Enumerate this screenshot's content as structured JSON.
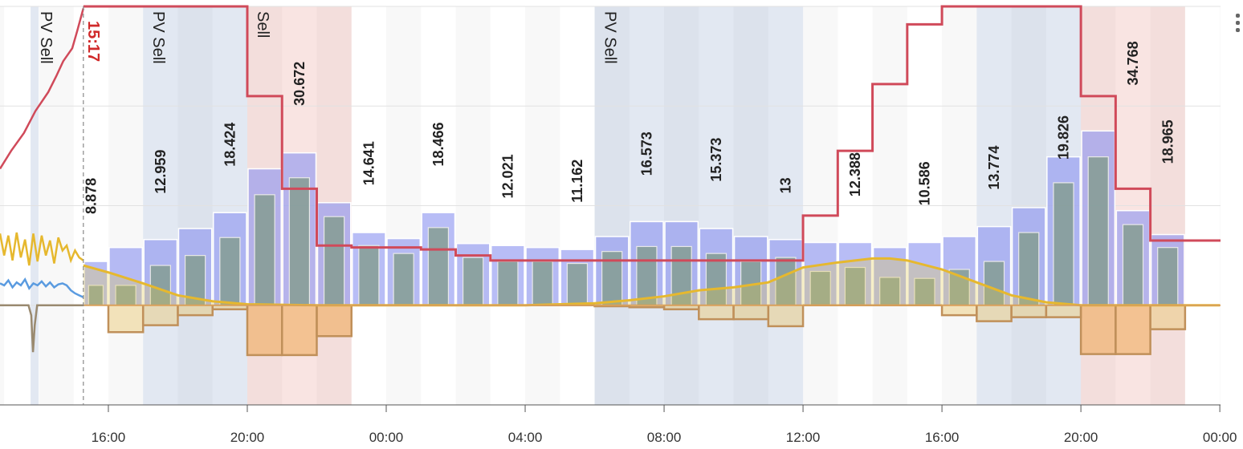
{
  "chart_data": {
    "type": "combo",
    "xlim": [
      12.88,
      48.02
    ],
    "ylim": [
      -1,
      3
    ],
    "yticks": [
      -1,
      0,
      1,
      2,
      3
    ],
    "grid": true,
    "xticks": [
      {
        "value": 16,
        "label": "16:00"
      },
      {
        "value": 20,
        "label": "20:00"
      },
      {
        "value": 24,
        "label": "00:00"
      },
      {
        "value": 28,
        "label": "04:00"
      },
      {
        "value": 32,
        "label": "08:00"
      },
      {
        "value": 36,
        "label": "12:00"
      },
      {
        "value": 40,
        "label": "16:00"
      },
      {
        "value": 44,
        "label": "20:00"
      },
      {
        "value": 48,
        "label": "00:00"
      }
    ],
    "now": {
      "value": 15.28,
      "label": "15:17"
    },
    "bands": [
      {
        "kind": "pv",
        "x": [
          13.76,
          13.99
        ],
        "label": "PV Sell"
      },
      {
        "kind": "pv",
        "x": [
          17,
          20
        ],
        "label": "PV Sell"
      },
      {
        "kind": "sell",
        "x": [
          20,
          23
        ],
        "label": "Sell"
      },
      {
        "kind": "pv",
        "x": [
          30,
          36
        ],
        "label": "PV Sell"
      },
      {
        "kind": "pv",
        "x": [
          41,
          44
        ]
      },
      {
        "kind": "sell",
        "x": [
          44,
          47
        ]
      }
    ],
    "series": [
      {
        "kind": "bar",
        "color": "#8c95f0",
        "x": [
          15,
          16,
          17,
          18,
          19,
          20,
          21,
          22,
          23,
          24,
          25,
          26,
          27,
          28,
          29,
          30,
          31,
          32,
          33,
          34,
          35,
          36,
          37,
          38,
          39,
          40,
          41,
          42,
          43,
          44,
          45,
          46
        ],
        "values": [
          0.44,
          0.58,
          0.66,
          0.77,
          0.93,
          1.37,
          1.53,
          1.03,
          0.73,
          0.67,
          0.93,
          0.62,
          0.6,
          0.58,
          0.56,
          0.69,
          0.84,
          0.84,
          0.77,
          0.69,
          0.66,
          0.63,
          0.63,
          0.58,
          0.63,
          0.69,
          0.79,
          0.98,
          1.49,
          1.75,
          0.95,
          0.71
        ]
      },
      {
        "kind": "inner-bar",
        "color": "#7f9a86",
        "x": [
          15,
          16,
          17,
          18,
          19,
          20,
          21,
          22,
          23,
          24,
          25,
          26,
          27,
          28,
          29,
          30,
          31,
          32,
          33,
          34,
          35,
          36,
          37,
          38,
          39,
          40,
          41,
          42,
          43,
          44,
          45,
          46
        ],
        "values": [
          0.2,
          0.2,
          0.4,
          0.5,
          0.68,
          1.11,
          1.28,
          0.89,
          0.6,
          0.52,
          0.78,
          0.48,
          0.44,
          0.44,
          0.42,
          0.54,
          0.59,
          0.59,
          0.52,
          0.44,
          0.48,
          0.34,
          0.38,
          0.28,
          0.27,
          0.36,
          0.44,
          0.73,
          1.23,
          1.49,
          0.81,
          0.58
        ]
      },
      {
        "kind": "step-area",
        "color": "#c0905a",
        "x": [
          16,
          17,
          18,
          19,
          20,
          21,
          22,
          23,
          24,
          25,
          26,
          27,
          28,
          29,
          30,
          31,
          32,
          33,
          34,
          35,
          36,
          37,
          38,
          39,
          40,
          41,
          42,
          43,
          44,
          45,
          46
        ],
        "values": [
          -0.27,
          -0.2,
          -0.1,
          -0.04,
          -0.5,
          -0.5,
          -0.31,
          0,
          0,
          0,
          0,
          0,
          0,
          0,
          -0.01,
          -0.02,
          -0.04,
          -0.14,
          -0.14,
          -0.21,
          0,
          0,
          0,
          0,
          -0.1,
          -0.16,
          -0.12,
          -0.12,
          -0.49,
          -0.49,
          -0.24
        ]
      },
      {
        "kind": "area",
        "color": "#e6b82e",
        "x": [
          15.28,
          16,
          17,
          18,
          19,
          20,
          22,
          28,
          30,
          31,
          32,
          33,
          34,
          35,
          36,
          37,
          38,
          38.5,
          39,
          40,
          41,
          42,
          43,
          44,
          48
        ],
        "values": [
          0.4,
          0.33,
          0.22,
          0.1,
          0.04,
          0.01,
          0,
          0,
          0.02,
          0.05,
          0.09,
          0.15,
          0.18,
          0.23,
          0.38,
          0.43,
          0.47,
          0.47,
          0.45,
          0.36,
          0.23,
          0.1,
          0.03,
          0,
          0
        ]
      },
      {
        "kind": "step",
        "color": "#d04a5a",
        "x": [
          15.28,
          20,
          21,
          22,
          23,
          25,
          26,
          27,
          36,
          37,
          38,
          39,
          40,
          44,
          45,
          46
        ],
        "values": [
          3,
          2.1,
          1.17,
          0.6,
          0.58,
          0.56,
          0.5,
          0.45,
          0.9,
          1.55,
          2.22,
          2.82,
          3,
          2.1,
          1.17,
          0.65
        ]
      },
      {
        "kind": "line",
        "color": "#d04a5a",
        "x": [
          12.88,
          13.2,
          13.57,
          13.9,
          14.27,
          14.5,
          14.7,
          14.96,
          15.1,
          15.28
        ],
        "values": [
          1.37,
          1.55,
          1.73,
          1.95,
          2.14,
          2.3,
          2.45,
          2.58,
          2.75,
          2.98
        ]
      },
      {
        "kind": "line",
        "color": "#e6b82e",
        "x": [
          12.88,
          13,
          13.12,
          13.24,
          13.36,
          13.48,
          13.6,
          13.72,
          13.84,
          13.96,
          14.08,
          14.2,
          14.32,
          14.44,
          14.56,
          14.68,
          14.8,
          14.92,
          15.04,
          15.16,
          15.28
        ],
        "values": [
          0.72,
          0.5,
          0.7,
          0.45,
          0.73,
          0.48,
          0.66,
          0.4,
          0.72,
          0.44,
          0.7,
          0.5,
          0.65,
          0.42,
          0.68,
          0.55,
          0.6,
          0.45,
          0.55,
          0.48,
          0.45
        ]
      },
      {
        "kind": "line",
        "color": "#5a9be0",
        "x": [
          12.88,
          13,
          13.12,
          13.24,
          13.36,
          13.48,
          13.6,
          13.72,
          13.84,
          13.96,
          14.08,
          14.2,
          14.32,
          14.44,
          14.56,
          14.68,
          14.8,
          14.92,
          15.04,
          15.16,
          15.28
        ],
        "values": [
          0.22,
          0.2,
          0.25,
          0.18,
          0.23,
          0.2,
          0.26,
          0.17,
          0.22,
          0.2,
          0.24,
          0.19,
          0.23,
          0.18,
          0.21,
          0.22,
          0.2,
          0.15,
          0.12,
          0.1,
          0.08
        ]
      },
      {
        "kind": "line",
        "color": "#9a8a70",
        "x": [
          12.88,
          13.7,
          13.78,
          13.83,
          13.88,
          13.95,
          15.28
        ],
        "values": [
          0,
          0,
          -0.1,
          -0.47,
          -0.2,
          0,
          0
        ]
      }
    ],
    "annotations": {
      "x": [
        15.5,
        17.5,
        19.5,
        21.5,
        23.5,
        25.5,
        27.5,
        29.5,
        31.5,
        33.5,
        35.5,
        37.5,
        39.5,
        41.5,
        43.5,
        45.5,
        46.5
      ],
      "values": [
        8.878,
        12.959,
        18.424,
        30.672,
        14.641,
        18.466,
        12.021,
        11.162,
        16.573,
        15.373,
        13,
        12.388,
        10.586,
        13.774,
        19.826,
        34.768,
        18.965
      ]
    }
  }
}
